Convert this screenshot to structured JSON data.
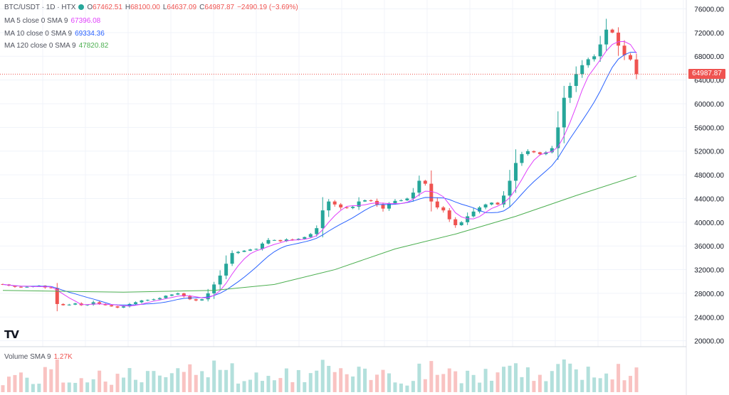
{
  "header": {
    "symbol": "BTC/USDT · 1D · HTX",
    "open_label": "O",
    "open": "67462.51",
    "high_label": "H",
    "high": "68100.00",
    "low_label": "L",
    "low": "64637.09",
    "close_label": "C",
    "close": "64987.87",
    "change": "−2490.19 (−3.69%)"
  },
  "indicators": {
    "ma5": {
      "label": "MA 5 close 0 SMA 9",
      "value": "67396.08",
      "color": "#e040fb"
    },
    "ma10": {
      "label": "MA 10 close 0 SMA 9",
      "value": "69334.36",
      "color": "#2962ff"
    },
    "ma120": {
      "label": "MA 120 close 0 SMA 9",
      "value": "47820.82",
      "color": "#4caf50"
    },
    "volume": {
      "label": "Volume SMA 9",
      "value": "1.27K"
    }
  },
  "price_tag": "64987.87",
  "logo": "TV",
  "colors": {
    "up": "#26a69a",
    "down": "#ef5350",
    "grid": "#f0f3fa"
  },
  "chart_data": {
    "type": "candlestick",
    "y_axis": {
      "ticks": [
        20000,
        24000,
        28000,
        32000,
        36000,
        40000,
        44000,
        48000,
        52000,
        56000,
        60000,
        64000,
        68000,
        72000,
        76000
      ],
      "tick_labels": [
        "20000.00",
        "24000.00",
        "28000.00",
        "32000.00",
        "36000.00",
        "40000.00",
        "44000.00",
        "48000.00",
        "52000.00",
        "56000.00",
        "60000.00",
        "64000.00",
        "68000.00",
        "72000.00",
        "76000.00"
      ],
      "ylim": [
        19000,
        77500
      ]
    },
    "close_path": [
      29500,
      29300,
      29100,
      29000,
      29100,
      29200,
      29300,
      29000,
      28900,
      26200,
      26000,
      26100,
      26300,
      26000,
      26100,
      26500,
      26200,
      26000,
      25800,
      25600,
      25800,
      26200,
      26500,
      26800,
      26900,
      27000,
      27200,
      27600,
      27800,
      28000,
      27500,
      27000,
      26800,
      27000,
      28000,
      29500,
      31000,
      33000,
      34800,
      35000,
      35200,
      35400,
      35500,
      36400,
      37000,
      37000,
      36800,
      37100,
      37000,
      37200,
      37500,
      38000,
      39000,
      42000,
      43500,
      43000,
      42500,
      42400,
      42600,
      43500,
      43700,
      43600,
      43000,
      42300,
      43200,
      43600,
      43700,
      44000,
      45000,
      47000,
      46500,
      43500,
      42500,
      42000,
      40500,
      39500,
      40000,
      41000,
      41800,
      42500,
      43000,
      43300,
      43000,
      44500,
      47000,
      50000,
      51500,
      52000,
      51800,
      51500,
      51800,
      52500,
      56000,
      61000,
      63000,
      65000,
      66500,
      67500,
      68000,
      70000,
      72500,
      72000,
      69800,
      68200,
      67462,
      64988
    ],
    "ma120_samples": [
      [
        0,
        28500
      ],
      [
        20,
        28200
      ],
      [
        35,
        28500
      ],
      [
        45,
        29500
      ],
      [
        55,
        32000
      ],
      [
        65,
        35500
      ],
      [
        75,
        38000
      ],
      [
        85,
        41000
      ],
      [
        95,
        44500
      ],
      [
        105,
        47800
      ]
    ],
    "annotations": {
      "last_price": 64987.87
    }
  }
}
